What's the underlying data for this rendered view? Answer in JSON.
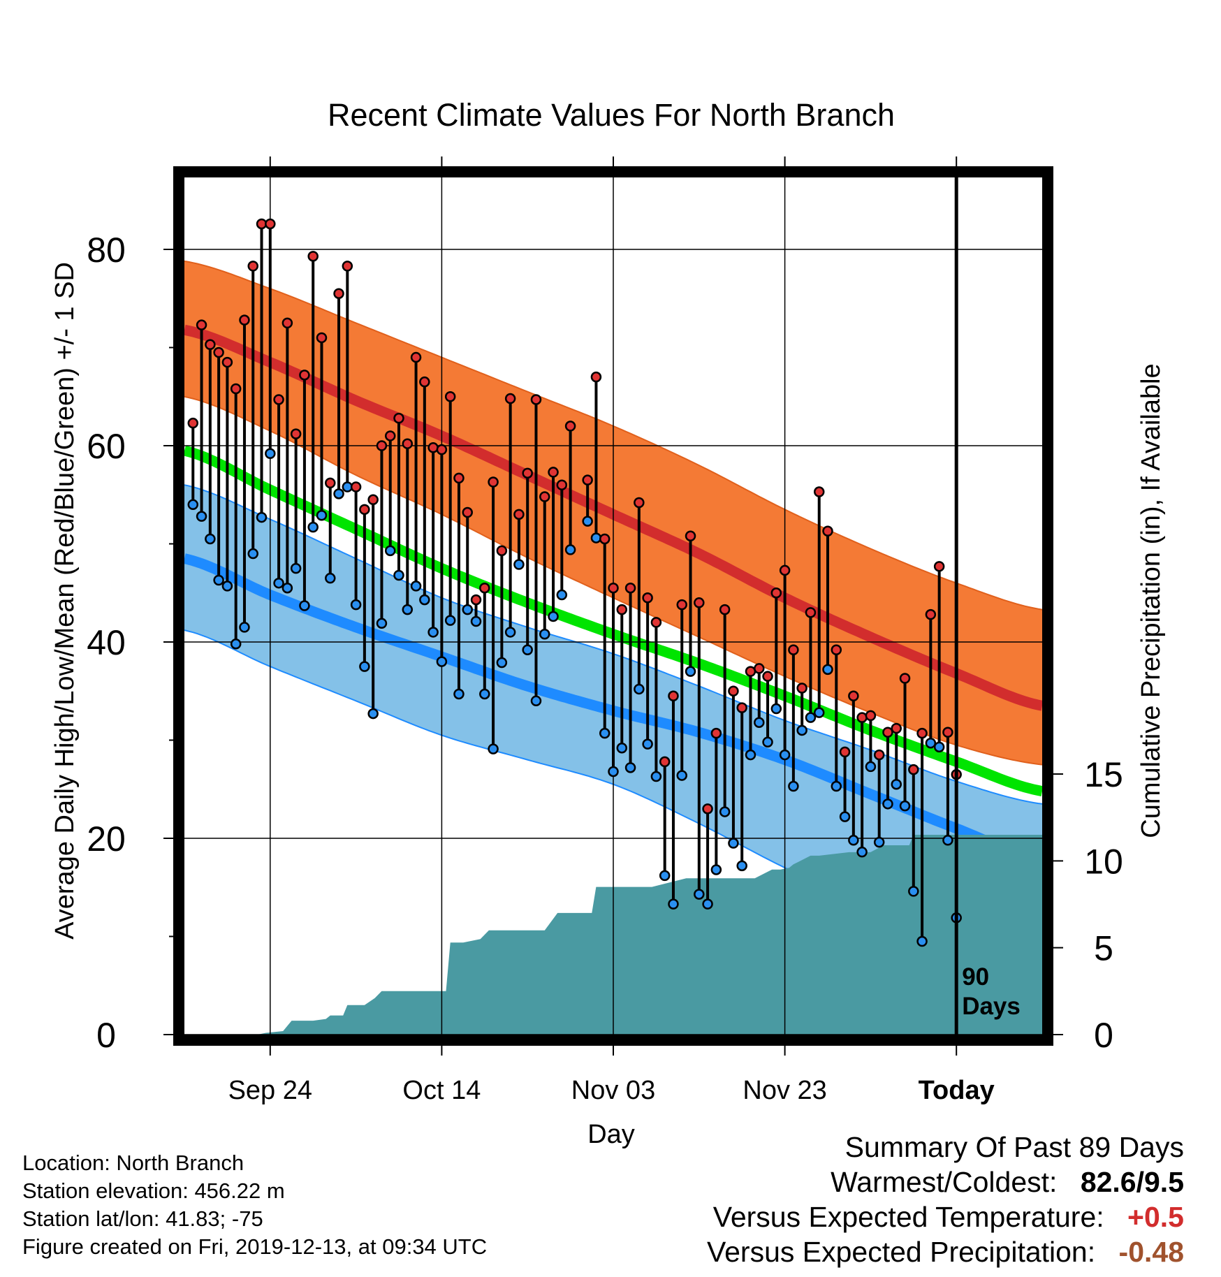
{
  "chart_data": {
    "type": "line",
    "title": "Recent Climate Values For North Branch",
    "xlabel": "Day",
    "ylabel": "Average Daily High/Low/Mean (Red/Blue/Green) +/- 1 SD",
    "y2label": "Cumulative Precipitation (in), If Available",
    "x_ticks": [
      {
        "day": 9,
        "label": "Sep 24"
      },
      {
        "day": 29,
        "label": "Oct 14"
      },
      {
        "day": 49,
        "label": "Nov 03"
      },
      {
        "day": 69,
        "label": "Nov 23"
      },
      {
        "day": 89,
        "label": "Today"
      }
    ],
    "xlim": [
      -1,
      99
    ],
    "ylim": [
      0,
      80
    ],
    "y_ticks": [
      0,
      20,
      40,
      60,
      80
    ],
    "y2lim": [
      0,
      18
    ],
    "y2_ticks": [
      0,
      5,
      10,
      15
    ],
    "today_marker": {
      "day": 89,
      "label_line1": "90",
      "label_line2": "Days"
    },
    "normals": {
      "days": [
        -1,
        9,
        19,
        29,
        39,
        49,
        59,
        69,
        79,
        89,
        99
      ],
      "high_plus_sd": [
        78.8,
        76.0,
        72.5,
        69.0,
        65.5,
        62.0,
        58.0,
        53.5,
        49.5,
        46.0,
        43.3
      ],
      "high_mean": [
        71.8,
        68.5,
        64.6,
        61.0,
        57.0,
        53.0,
        49.0,
        44.5,
        40.5,
        36.8,
        33.5
      ],
      "high_minus_sd": [
        65.0,
        61.5,
        57.0,
        53.0,
        48.6,
        44.5,
        40.5,
        36.5,
        32.8,
        29.5,
        27.5
      ],
      "mean": [
        59.5,
        55.5,
        51.5,
        47.5,
        44.0,
        40.8,
        37.8,
        34.5,
        31.0,
        27.8,
        24.8
      ],
      "low_plus_sd": [
        56.0,
        52.5,
        48.5,
        44.5,
        41.5,
        38.8,
        35.5,
        32.0,
        29.0,
        25.8,
        23.5
      ],
      "low_mean": [
        48.5,
        44.8,
        41.5,
        38.5,
        35.5,
        33.0,
        30.8,
        28.0,
        24.5,
        21.0,
        17.8
      ],
      "low_minus_sd": [
        41.2,
        37.5,
        34.0,
        30.5,
        28.0,
        25.5,
        21.5,
        17.0,
        13.0,
        9.5,
        6.5
      ]
    },
    "daily_high": [
      62.3,
      72.3,
      70.3,
      69.5,
      68.5,
      65.8,
      72.8,
      78.3,
      82.6,
      82.6,
      64.7,
      72.5,
      61.2,
      67.2,
      79.3,
      71.0,
      56.2,
      75.5,
      78.3,
      55.8,
      53.5,
      54.5,
      60.0,
      61.0,
      62.8,
      60.2,
      69.0,
      66.5,
      59.8,
      59.6,
      65.0,
      56.7,
      53.2,
      44.3,
      45.5,
      56.3,
      49.3,
      64.8,
      53.0,
      57.2,
      64.7,
      54.8,
      57.3,
      56.0,
      62.0,
      null,
      56.5,
      67.0,
      50.5,
      45.5,
      43.3,
      45.5,
      54.2,
      44.5,
      42.0,
      27.8,
      34.5,
      43.8,
      50.8,
      44.0,
      23.0,
      30.7,
      43.3,
      35.0,
      33.3,
      37.0,
      37.3,
      36.5,
      45.0,
      47.3,
      39.2,
      35.3,
      43.0,
      55.3,
      51.3,
      39.2,
      28.8,
      34.5,
      32.3,
      32.5,
      28.5,
      30.8,
      31.2,
      36.3,
      27.0,
      30.7,
      42.8,
      47.7,
      30.8,
      26.5
    ],
    "daily_low": [
      54.0,
      52.8,
      50.5,
      46.3,
      45.7,
      39.8,
      41.5,
      49.0,
      52.7,
      59.2,
      46.0,
      45.5,
      47.5,
      43.7,
      51.7,
      52.9,
      46.5,
      55.1,
      55.8,
      43.8,
      37.5,
      32.7,
      41.9,
      49.3,
      46.8,
      43.3,
      45.7,
      44.3,
      41.0,
      38.0,
      42.2,
      34.7,
      43.3,
      42.1,
      34.7,
      29.1,
      37.9,
      41.0,
      47.9,
      39.2,
      34.0,
      40.8,
      42.6,
      44.8,
      49.4,
      null,
      52.3,
      50.6,
      30.7,
      26.8,
      29.2,
      27.2,
      35.2,
      29.6,
      26.3,
      16.2,
      13.3,
      26.4,
      37.0,
      14.3,
      13.3,
      16.8,
      22.7,
      19.5,
      17.2,
      28.5,
      31.8,
      29.8,
      33.2,
      28.5,
      25.3,
      31.0,
      32.3,
      32.8,
      37.2,
      25.3,
      22.2,
      19.8,
      18.6,
      27.3,
      19.6,
      23.5,
      25.5,
      23.3,
      14.6,
      9.5,
      29.7,
      29.3,
      19.8,
      11.9
    ],
    "cumulative_precip": {
      "days": [
        -1,
        7.5,
        8.5,
        10.5,
        11.5,
        14,
        15.5,
        16,
        17.5,
        18,
        20,
        21.2,
        22,
        23.5,
        24.5,
        25,
        29.5,
        30,
        31.5,
        33.5,
        34.5,
        37.5,
        38.5,
        40.5,
        41,
        42.5,
        43.5,
        46.5,
        47,
        50.5,
        51.5,
        52.5,
        53.5,
        57.5,
        58.5,
        60.5,
        62,
        63,
        65.5,
        67.5,
        68.5,
        69.5,
        70,
        72,
        73,
        76.5,
        77.5,
        79,
        80.5,
        83.5,
        84,
        85,
        99
      ],
      "values": [
        0,
        0,
        0.1,
        0.2,
        0.8,
        0.8,
        0.9,
        1.1,
        1.1,
        1.7,
        1.7,
        2.1,
        2.5,
        2.5,
        2.5,
        2.5,
        2.5,
        5.3,
        5.3,
        5.5,
        6.0,
        6.0,
        6.0,
        6.0,
        6.0,
        7.0,
        7.0,
        7.0,
        8.5,
        8.5,
        8.5,
        8.5,
        8.5,
        9.0,
        9.0,
        9.0,
        9.0,
        9.0,
        9.0,
        9.5,
        9.5,
        9.6,
        9.8,
        10.3,
        10.3,
        10.5,
        10.5,
        10.5,
        10.9,
        10.9,
        11.5,
        11.5,
        11.5
      ]
    },
    "colors": {
      "high_band": "#f47a35",
      "high_line": "#d22d2d",
      "low_band": "#84c1e8",
      "low_line": "#1e8bff",
      "mean_line": "#00e400",
      "overlap_band": "#a31a1a",
      "precip": "#4a9aa2",
      "high_dot": "#e03434",
      "low_dot": "#2a8ff0"
    },
    "grid": true
  },
  "footer": {
    "location": "Location: North Branch",
    "elevation": "Station elevation: 456.22 m",
    "latlon": "Station lat/lon: 41.83; -75",
    "created": "Figure created on Fri, 2019-12-13, at 09:34 UTC"
  },
  "summary": {
    "title": "Summary Of Past 89 Days",
    "warmest_coldest_label": "Warmest/Coldest:",
    "warmest_coldest_value": "82.6/9.5",
    "temp_label": "Versus Expected Temperature:",
    "temp_value": "+0.5",
    "temp_color": "#d22d2d",
    "precip_label": "Versus Expected Precipitation:",
    "precip_value": "-0.48",
    "precip_color": "#a0522d"
  }
}
